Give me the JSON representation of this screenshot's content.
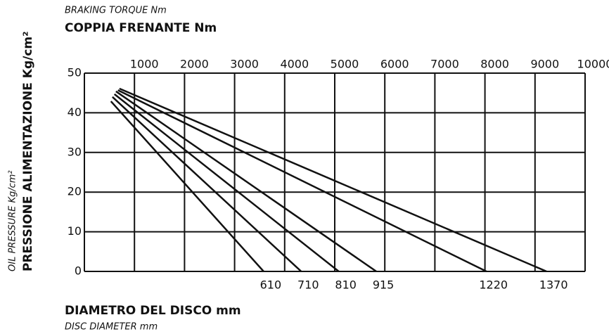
{
  "chart_data": {
    "type": "line",
    "top_axis_title_en": "BRAKING TORQUE Nm",
    "top_axis_title_it": "COPPIA FRENANTE Nm",
    "y_axis_title_en": "OIL PRESSURE Kg/cm²",
    "y_axis_title_it": "PRESSIONE ALIMENTAZIONE Kg/cm²",
    "legend_title_it": "DIAMETRO DEL DISCO mm",
    "legend_title_en": "DISC DIAMETER mm",
    "xlim": [
      0,
      10000
    ],
    "xticks": [
      1000,
      2000,
      3000,
      4000,
      5000,
      6000,
      7000,
      8000,
      9000,
      10000
    ],
    "ylim": [
      0,
      50
    ],
    "yticks": [
      0,
      10,
      20,
      30,
      40,
      50
    ],
    "grid": true,
    "color": "#111111",
    "series": [
      {
        "name": "610",
        "x": [
          530,
          3580
        ],
        "values": [
          42.9,
          0
        ]
      },
      {
        "name": "710",
        "x": [
          560,
          4330
        ],
        "values": [
          44,
          0
        ]
      },
      {
        "name": "810",
        "x": [
          600,
          5080
        ],
        "values": [
          44.7,
          0
        ]
      },
      {
        "name": "915",
        "x": [
          630,
          5830
        ],
        "values": [
          45.4,
          0
        ]
      },
      {
        "name": "1220",
        "x": [
          670,
          8030
        ],
        "values": [
          45.7,
          0
        ]
      },
      {
        "name": "1370",
        "x": [
          700,
          9230
        ],
        "values": [
          46.1,
          0
        ]
      }
    ]
  }
}
